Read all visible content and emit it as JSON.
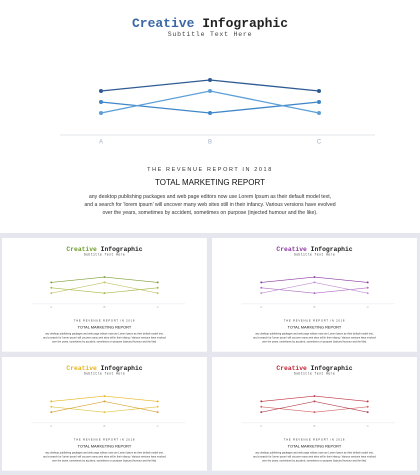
{
  "content": {
    "title_accent": "Creative",
    "title_rest": "Infographic",
    "subtitle": "Subtitle Text Here",
    "report_label": "THE REVENUE REPORT IN 2018",
    "heading": "TOTAL MARKETING REPORT",
    "body": [
      "any desktop publishing packages and web page editors now use Lorem Ipsum as their default model text,",
      "and a search for 'lorem ipsum' will uncover many web sites still in their infancy. Various versions have evolved",
      "over the years, sometimes by accident, sometimes on purpose (injected humour and the like)."
    ]
  },
  "chart_data": {
    "type": "line",
    "categories": [
      "A",
      "B",
      "C"
    ],
    "series": [
      {
        "values": [
          3,
          4,
          3
        ]
      },
      {
        "values": [
          2,
          1,
          2
        ]
      },
      {
        "values": [
          1,
          3,
          1
        ]
      }
    ],
    "ylim": [
      0,
      4
    ]
  },
  "slides": [
    {
      "accent_color": "#3a68a6",
      "line_colors": [
        "#2f5b94",
        "#3f86c9",
        "#5c9fd6"
      ]
    },
    {
      "accent_color": "#6e9c2c",
      "line_colors": [
        "#7b9f34",
        "#a7b94a",
        "#c2c36a"
      ]
    },
    {
      "accent_color": "#8c3aa0",
      "line_colors": [
        "#8a3aa0",
        "#b06ec2",
        "#c392d3"
      ]
    },
    {
      "accent_color": "#e6b41e",
      "line_colors": [
        "#e5b51f",
        "#e1c446",
        "#d8a235"
      ]
    },
    {
      "accent_color": "#c22434",
      "line_colors": [
        "#c03040",
        "#d46464",
        "#b24652"
      ]
    }
  ]
}
